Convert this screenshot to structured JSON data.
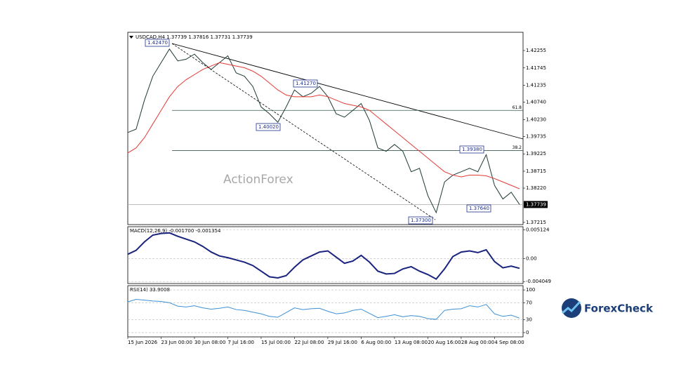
{
  "chart_data": [
    {
      "type": "line",
      "title": "USDCAD,H4 1.37739 1.37816 1.37731 1.37739",
      "watermark": "ActionForex",
      "categories": [
        "15 Jun 2026",
        null,
        null,
        null,
        "23 Jun 00:00",
        null,
        null,
        null,
        "30 Jun 08:00",
        null,
        null,
        null,
        "7 Jul 16:00",
        null,
        null,
        null,
        "15 Jul 00:00",
        null,
        null,
        null,
        "22 Jul 08:00",
        null,
        null,
        null,
        "29 Jul 16:00",
        null,
        null,
        null,
        "6 Aug 00:00",
        null,
        null,
        null,
        "13 Aug 08:00",
        null,
        null,
        null,
        "20 Aug 16:00",
        null,
        null,
        null,
        "28 Aug 00:00",
        null,
        null,
        null,
        "4 Sep 08:00",
        null,
        null,
        null
      ],
      "series": [
        {
          "name": "USDCAD",
          "color": "#1e3b36",
          "values": [
            1.3985,
            1.3995,
            1.408,
            1.415,
            1.419,
            1.423,
            1.4195,
            1.42,
            1.4215,
            1.419,
            1.417,
            1.419,
            1.421,
            1.416,
            1.415,
            1.412,
            1.406,
            1.404,
            1.4015,
            1.406,
            1.411,
            1.409,
            1.41,
            1.412,
            1.409,
            1.404,
            1.403,
            1.405,
            1.407,
            1.402,
            1.394,
            1.393,
            1.395,
            1.393,
            1.387,
            1.388,
            1.38,
            1.375,
            1.384,
            1.386,
            1.387,
            1.388,
            1.387,
            1.392,
            1.383,
            1.379,
            1.381,
            1.3774
          ]
        },
        {
          "name": "MA",
          "color": "#e53935",
          "values": [
            1.3925,
            1.394,
            1.397,
            1.401,
            1.405,
            1.409,
            1.412,
            1.414,
            1.4155,
            1.417,
            1.418,
            1.419,
            1.4185,
            1.418,
            1.4175,
            1.4165,
            1.415,
            1.413,
            1.411,
            1.4095,
            1.409,
            1.409,
            1.409,
            1.4095,
            1.409,
            1.408,
            1.407,
            1.4065,
            1.406,
            1.405,
            1.403,
            1.401,
            1.399,
            1.397,
            1.395,
            1.393,
            1.391,
            1.389,
            1.387,
            1.386,
            1.3855,
            1.386,
            1.386,
            1.3858,
            1.385,
            1.384,
            1.383,
            1.382
          ]
        }
      ],
      "ylim": [
        1.3715,
        1.4279
      ],
      "yticks": [
        1.42255,
        1.41745,
        1.41235,
        {
          "value": 1.4074,
          "label": "1.40740"
        },
        {
          "value": 1.4023,
          "label": "1.40230"
        },
        1.39735,
        1.39225,
        1.38715,
        {
          "value": 1.3822,
          "label": "1.38220"
        },
        1.37215
      ],
      "last_price": 1.37739,
      "fib_levels": [
        {
          "name": "61.8",
          "price": 1.405
        },
        {
          "name": "38.2",
          "price": 1.3932
        }
      ],
      "price_labels": [
        "1.42470",
        "1.41270",
        "1.40020",
        "1.39380",
        "1.37640",
        "1.37300"
      ]
    },
    {
      "type": "line",
      "title": "MACD(12,26,9) -0.001700 -0.001354",
      "series": [
        {
          "name": "MACD",
          "color": "#1a237e",
          "values": [
            0.0008,
            0.0015,
            0.003,
            0.0042,
            0.0045,
            0.0046,
            0.004,
            0.0035,
            0.003,
            0.0022,
            0.0012,
            0.0005,
            0.0002,
            -0.0002,
            -0.0006,
            -0.0012,
            -0.0022,
            -0.0032,
            -0.0034,
            -0.003,
            -0.0015,
            -0.0002,
            0.0005,
            0.0012,
            0.0014,
            0.0003,
            -0.0008,
            -0.0004,
            0.0006,
            -0.0006,
            -0.0022,
            -0.0027,
            -0.0026,
            -0.0018,
            -0.0014,
            -0.0022,
            -0.0028,
            -0.0036,
            -0.0018,
            0.0004,
            0.0012,
            0.0014,
            0.0011,
            0.0016,
            -0.0005,
            -0.0016,
            -0.0013,
            -0.0017
          ]
        }
      ],
      "ylim": [
        -0.0044,
        0.0057
      ],
      "yticks": [
        0.005124,
        {
          "value": 0,
          "label": "0.00"
        },
        -0.004049
      ]
    },
    {
      "type": "line",
      "title": "RSI(14) 33.9008",
      "series": [
        {
          "name": "RSI",
          "color": "#3d8fd6",
          "values": [
            72,
            78,
            76,
            74,
            73,
            70,
            62,
            60,
            63,
            58,
            55,
            57,
            60,
            54,
            52,
            48,
            44,
            38,
            36,
            47,
            58,
            54,
            56,
            57,
            50,
            44,
            46,
            52,
            55,
            45,
            35,
            38,
            42,
            37,
            40,
            38,
            33,
            31,
            52,
            55,
            56,
            63,
            60,
            66,
            44,
            38,
            41,
            33.9
          ]
        }
      ],
      "ylim": [
        -10,
        110
      ],
      "yticks": [
        100,
        70,
        30,
        0
      ]
    }
  ],
  "logo": "ForexCheck"
}
